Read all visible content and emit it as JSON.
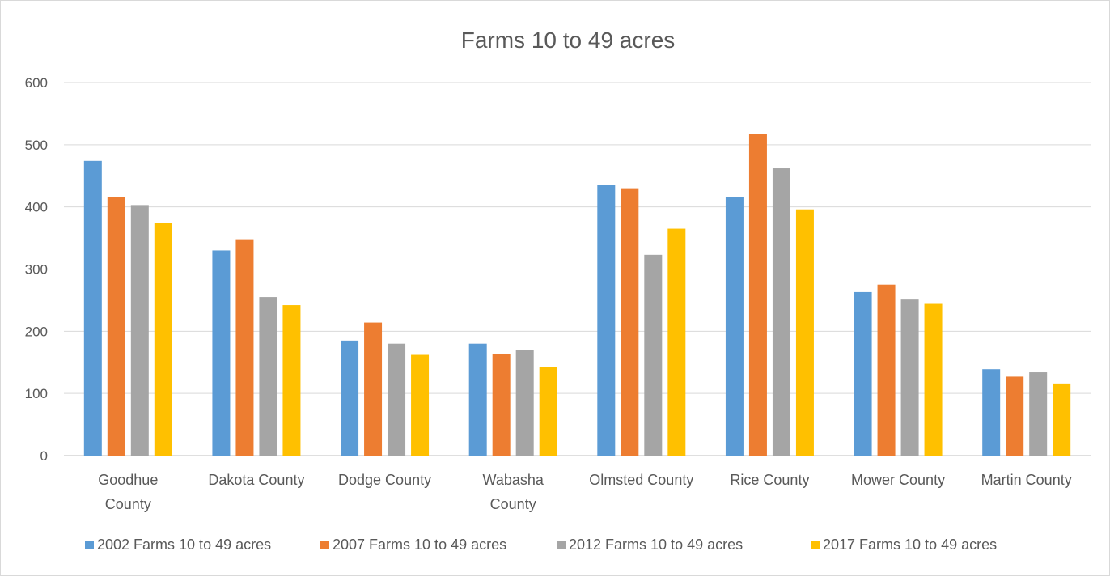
{
  "chart_data": {
    "type": "bar",
    "title": "Farms 10 to 49 acres",
    "categories": [
      "Goodhue County",
      "Dakota County",
      "Dodge County",
      "Wabasha County",
      "Olmsted County",
      "Rice County",
      "Mower County",
      "Martin County"
    ],
    "series": [
      {
        "name": "2002 Farms 10 to 49 acres",
        "color": "#5b9bd5",
        "values": [
          474,
          330,
          185,
          180,
          436,
          416,
          263,
          139
        ]
      },
      {
        "name": "2007 Farms 10 to 49 acres",
        "color": "#ed7d31",
        "values": [
          416,
          348,
          214,
          164,
          430,
          518,
          275,
          127
        ]
      },
      {
        "name": "2012 Farms 10 to 49 acres",
        "color": "#a5a5a5",
        "values": [
          403,
          255,
          180,
          170,
          323,
          462,
          251,
          134
        ]
      },
      {
        "name": "2017 Farms 10 to 49 acres",
        "color": "#ffc000",
        "values": [
          374,
          242,
          162,
          142,
          365,
          396,
          244,
          116
        ]
      }
    ],
    "ylim": [
      0,
      600
    ],
    "yticks": [
      "0",
      "100",
      "200",
      "300",
      "400",
      "500",
      "600"
    ],
    "grid": true,
    "legend_position": "bottom"
  }
}
